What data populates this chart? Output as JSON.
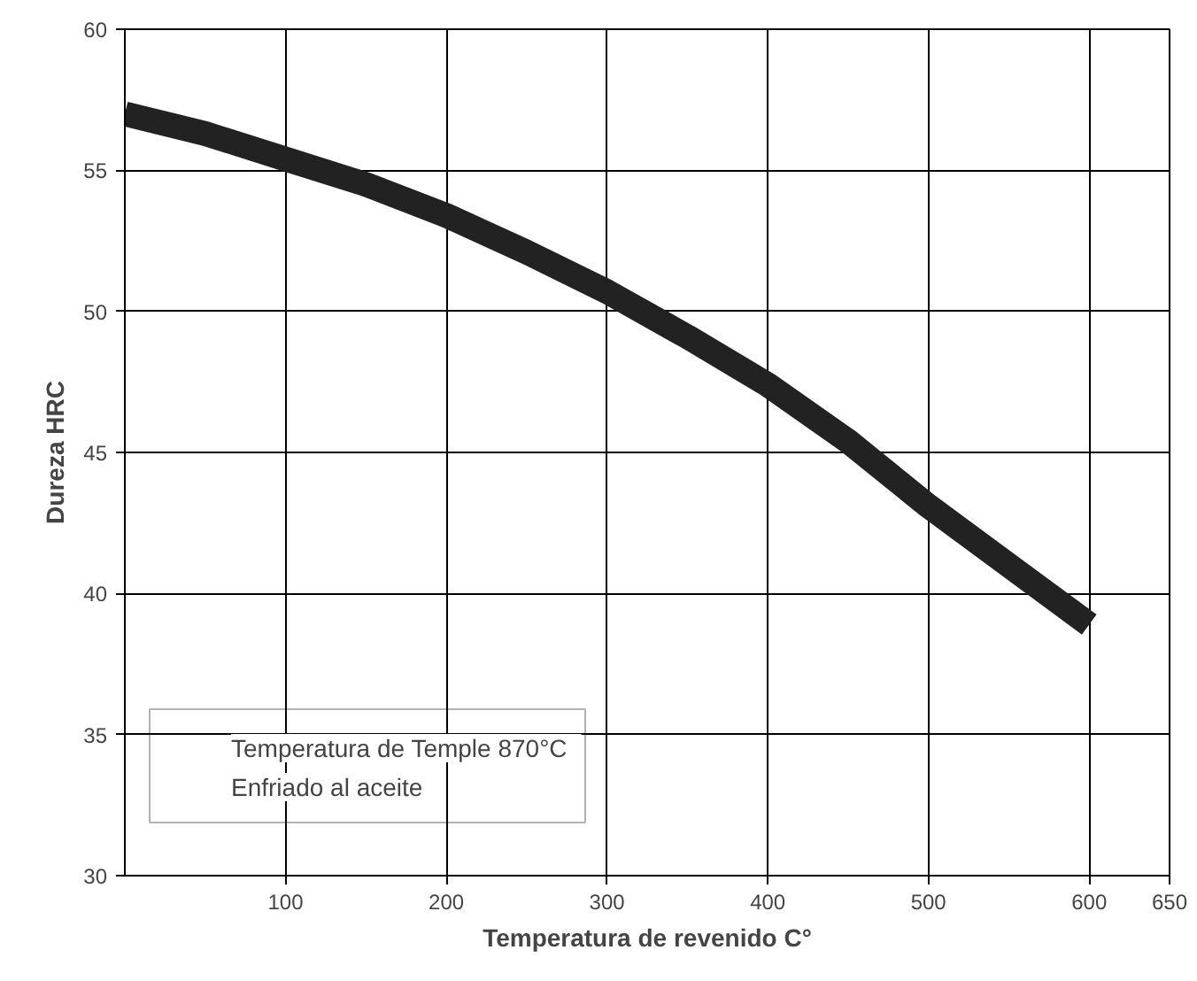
{
  "chart_data": {
    "type": "line",
    "xlabel": "Temperatura de revenido C°",
    "ylabel": "Dureza HRC",
    "x": [
      0,
      50,
      100,
      150,
      200,
      250,
      300,
      350,
      400,
      450,
      500,
      550,
      600
    ],
    "series": [
      {
        "color": "#222222",
        "values": [
          57.0,
          56.3,
          55.4,
          54.5,
          53.4,
          52.1,
          50.7,
          49.1,
          47.4,
          45.4,
          43.1,
          41.0,
          38.9
        ]
      }
    ],
    "xlim": [
      0,
      650
    ],
    "xticks": [
      100,
      200,
      300,
      400,
      500,
      600,
      650
    ],
    "ylim": [
      30,
      60
    ],
    "yticks": [
      30,
      35,
      40,
      45,
      50,
      55,
      60
    ],
    "grid": true,
    "marker": "none",
    "line_style": "solid",
    "annotations": [
      "Temperatura de Temple   870°C",
      "Enfriado al aceite"
    ]
  }
}
